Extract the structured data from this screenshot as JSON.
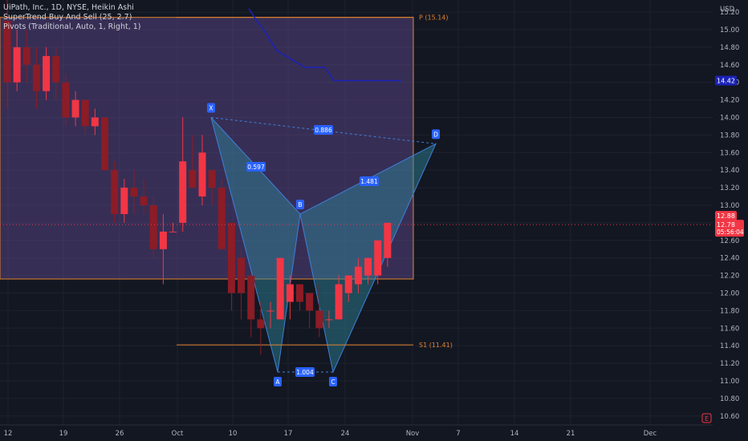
{
  "legend": {
    "title": "UiPath, Inc., 1D, NYSE, Heikin Ashi",
    "indicator1": "SuperTrend Buy And Sell (25, 2.7)",
    "indicator2": "Pivots (Traditional, Auto, 1, Right, 1)"
  },
  "price_axis": {
    "currency": "USD",
    "ticks": [
      "15.20",
      "15.00",
      "14.80",
      "14.60",
      "14.40",
      "14.20",
      "14.00",
      "13.80",
      "13.60",
      "13.40",
      "13.20",
      "13.00",
      "12.80",
      "12.60",
      "12.40",
      "12.20",
      "12.00",
      "11.80",
      "11.60",
      "11.40",
      "11.20",
      "11.00",
      "10.80",
      "10.60"
    ],
    "supertrend_value": "14.42",
    "last_price": "12.88",
    "current_price": "12.78",
    "countdown": "05:56:04"
  },
  "time_axis": {
    "ticks": [
      "12",
      "19",
      "26",
      "Oct",
      "10",
      "17",
      "24",
      "Nov",
      "7",
      "14",
      "21",
      "Dec"
    ]
  },
  "pivots": {
    "p_label": "P (15.14)",
    "s1_label": "S1 (11.41)"
  },
  "pattern": {
    "points": [
      "X",
      "A",
      "B",
      "C",
      "D"
    ],
    "ratios": [
      "0.597",
      "0.886",
      "1.004",
      "1.481"
    ]
  },
  "colors": {
    "background": "#131722",
    "bull": "#f23645",
    "bear": "#8c1c26",
    "supertrend": "#1b22b8",
    "pivot": "#e0822e",
    "pattern_label": "#2962ff",
    "harmonic_fill": "#2e8ca0"
  },
  "chart_data": {
    "type": "candlestick",
    "candles": [
      [
        15.1,
        15.5,
        14.1,
        14.4
      ],
      [
        14.4,
        15.0,
        14.3,
        14.8
      ],
      [
        14.8,
        15.0,
        14.4,
        14.6
      ],
      [
        14.6,
        14.8,
        14.1,
        14.3
      ],
      [
        14.3,
        14.8,
        14.2,
        14.7
      ],
      [
        14.7,
        14.8,
        14.2,
        14.4
      ],
      [
        14.4,
        14.5,
        13.9,
        14.0
      ],
      [
        14.0,
        14.3,
        13.9,
        14.2
      ],
      [
        14.2,
        14.2,
        13.8,
        13.9
      ],
      [
        13.9,
        14.1,
        13.8,
        14.0
      ],
      [
        14.0,
        14.0,
        13.4,
        13.4
      ],
      [
        13.4,
        13.5,
        12.8,
        12.9
      ],
      [
        12.9,
        13.3,
        12.8,
        13.2
      ],
      [
        13.2,
        13.4,
        12.9,
        13.1
      ],
      [
        13.1,
        13.3,
        12.9,
        13.0
      ],
      [
        13.0,
        13.1,
        12.4,
        12.5
      ],
      [
        12.5,
        12.9,
        12.1,
        12.7
      ],
      [
        12.7,
        12.8,
        12.7,
        12.7
      ],
      [
        12.8,
        14.0,
        12.7,
        13.5
      ],
      [
        13.4,
        13.8,
        13.2,
        13.2
      ],
      [
        13.1,
        13.8,
        13.0,
        13.6
      ],
      [
        13.4,
        13.4,
        13.0,
        13.2
      ],
      [
        13.2,
        13.3,
        12.5,
        12.5
      ],
      [
        12.8,
        12.8,
        11.8,
        12.0
      ],
      [
        12.4,
        12.5,
        11.7,
        12.0
      ],
      [
        12.2,
        12.2,
        11.5,
        11.7
      ],
      [
        11.7,
        11.9,
        11.3,
        11.6
      ],
      [
        11.8,
        11.9,
        11.6,
        11.8
      ],
      [
        11.7,
        12.4,
        11.7,
        12.4
      ],
      [
        11.9,
        12.2,
        11.7,
        12.1
      ],
      [
        12.1,
        12.1,
        11.8,
        11.9
      ],
      [
        12.0,
        12.0,
        11.6,
        11.8
      ],
      [
        11.8,
        12.1,
        11.5,
        11.6
      ],
      [
        11.7,
        11.8,
        11.6,
        11.7
      ],
      [
        11.7,
        12.2,
        11.7,
        12.1
      ],
      [
        12.0,
        12.2,
        11.9,
        12.2
      ],
      [
        12.1,
        12.4,
        12.0,
        12.3
      ],
      [
        12.2,
        12.4,
        12.1,
        12.4
      ],
      [
        12.2,
        12.6,
        12.1,
        12.6
      ],
      [
        12.4,
        12.8,
        12.3,
        12.8
      ]
    ],
    "supertrend": [
      [
        14.95,
        15.24
      ],
      [
        15.0,
        15.1
      ],
      [
        15.2,
        14.98
      ],
      [
        15.55,
        14.76
      ],
      [
        15.8,
        14.68
      ],
      [
        15.8,
        14.57
      ],
      [
        16.25,
        14.57
      ],
      [
        16.35,
        14.42
      ],
      [
        17.3,
        14.42
      ]
    ],
    "harmonic": {
      "X": [
        "7",
        14.0
      ],
      "A": [
        "15",
        11.1
      ],
      "B": [
        "18",
        12.9
      ],
      "C": [
        "22",
        11.1
      ],
      "D": [
        "Nov 3",
        13.7
      ]
    },
    "pivot_p": 15.14,
    "pivot_s1": 11.41,
    "ylim": [
      10.52,
      15.24
    ]
  }
}
